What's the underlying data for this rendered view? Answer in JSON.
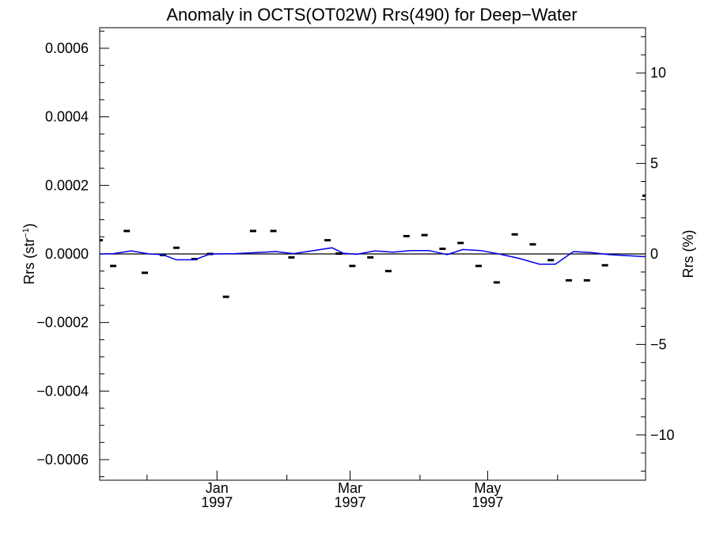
{
  "chart_data": {
    "type": "line",
    "title": "Anomaly in OCTS(OT02W) Rrs(490) for Deep−Water",
    "ylabel_left": "Rrs (str",
    "ylabel_left_sup": "−1",
    "ylabel_left_close": ")",
    "ylabel_right": "Rrs (%)",
    "y_left_lim": [
      -0.00066,
      0.00066
    ],
    "y_right_lim": [
      -12.5,
      12.5
    ],
    "x_domain": [
      "1996-11-10",
      "1997-07-10"
    ],
    "y_left_ticks": [
      {
        "value": 0.0006,
        "label": "0.0006"
      },
      {
        "value": 0.0004,
        "label": "0.0004"
      },
      {
        "value": 0.0002,
        "label": "0.0002"
      },
      {
        "value": 0.0,
        "label": "0.0000"
      },
      {
        "value": -0.0002,
        "label": "−0.0002"
      },
      {
        "value": -0.0004,
        "label": "−0.0004"
      },
      {
        "value": -0.0006,
        "label": "−0.0006"
      }
    ],
    "y_right_ticks": [
      {
        "value": 10,
        "label": "10"
      },
      {
        "value": 5,
        "label": "5"
      },
      {
        "value": 0,
        "label": "0"
      },
      {
        "value": -5,
        "label": "−5"
      },
      {
        "value": -10,
        "label": "−10"
      }
    ],
    "x_ticks": [
      {
        "date": "1997-01-01",
        "month": "Jan",
        "year": "1997"
      },
      {
        "date": "1997-03-01",
        "month": "Mar",
        "year": "1997"
      },
      {
        "date": "1997-05-01",
        "month": "May",
        "year": "1997"
      }
    ],
    "x_minor_ticks": [
      "1996-12-01",
      "1997-02-01",
      "1997-04-01",
      "1997-06-01"
    ],
    "zero_line": true,
    "series": [
      {
        "kind": "markers",
        "color": "#000000",
        "points": [
          {
            "x": "1996-11-10",
            "y": 4e-05
          },
          {
            "x": "1996-11-16",
            "y": -3.5e-05
          },
          {
            "x": "1996-11-22",
            "y": 6.7e-05
          },
          {
            "x": "1996-11-30",
            "y": -5.5e-05
          },
          {
            "x": "1996-12-08",
            "y": -3e-06
          },
          {
            "x": "1996-12-14",
            "y": 1.8e-05
          },
          {
            "x": "1996-12-22",
            "y": -1.5e-05
          },
          {
            "x": "1996-12-29",
            "y": 0.0
          },
          {
            "x": "1997-01-05",
            "y": -0.000125
          },
          {
            "x": "1997-01-17",
            "y": 6.7e-05
          },
          {
            "x": "1997-01-26",
            "y": 6.7e-05
          },
          {
            "x": "1997-02-03",
            "y": -1e-05
          },
          {
            "x": "1997-02-19",
            "y": 4e-05
          },
          {
            "x": "1997-02-24",
            "y": 1e-06
          },
          {
            "x": "1997-03-02",
            "y": -3.5e-05
          },
          {
            "x": "1997-03-10",
            "y": -1e-05
          },
          {
            "x": "1997-03-18",
            "y": -5e-05
          },
          {
            "x": "1997-03-26",
            "y": 5.2e-05
          },
          {
            "x": "1997-04-03",
            "y": 5.5e-05
          },
          {
            "x": "1997-04-11",
            "y": 1.5e-05
          },
          {
            "x": "1997-04-19",
            "y": 3.2e-05
          },
          {
            "x": "1997-04-27",
            "y": -3.5e-05
          },
          {
            "x": "1997-05-05",
            "y": -8.3e-05
          },
          {
            "x": "1997-05-13",
            "y": 5.7e-05
          },
          {
            "x": "1997-05-21",
            "y": 2.8e-05
          },
          {
            "x": "1997-05-29",
            "y": -1.8e-05
          },
          {
            "x": "1997-06-06",
            "y": -7.7e-05
          },
          {
            "x": "1997-06-14",
            "y": -7.7e-05
          },
          {
            "x": "1997-06-22",
            "y": -3.3e-05
          },
          {
            "x": "1997-07-10",
            "y": 0.00017
          }
        ]
      },
      {
        "kind": "line",
        "color": "#0000ee",
        "points": [
          {
            "x": "1996-11-10",
            "y": 0.0
          },
          {
            "x": "1996-11-16",
            "y": 1e-06
          },
          {
            "x": "1996-11-24",
            "y": 9e-06
          },
          {
            "x": "1996-12-02",
            "y": 0.0
          },
          {
            "x": "1996-12-08",
            "y": -2e-06
          },
          {
            "x": "1996-12-14",
            "y": -1.7e-05
          },
          {
            "x": "1996-12-22",
            "y": -1.7e-05
          },
          {
            "x": "1996-12-29",
            "y": 0.0
          },
          {
            "x": "1997-01-09",
            "y": 1e-06
          },
          {
            "x": "1997-01-27",
            "y": 7e-06
          },
          {
            "x": "1997-02-04",
            "y": 1e-06
          },
          {
            "x": "1997-02-12",
            "y": 9e-06
          },
          {
            "x": "1997-02-21",
            "y": 1.8e-05
          },
          {
            "x": "1997-02-26",
            "y": 2e-06
          },
          {
            "x": "1997-03-04",
            "y": -1e-06
          },
          {
            "x": "1997-03-12",
            "y": 9e-06
          },
          {
            "x": "1997-03-20",
            "y": 5e-06
          },
          {
            "x": "1997-03-28",
            "y": 1e-05
          },
          {
            "x": "1997-04-05",
            "y": 1e-05
          },
          {
            "x": "1997-04-13",
            "y": -2e-06
          },
          {
            "x": "1997-04-20",
            "y": 1.3e-05
          },
          {
            "x": "1997-04-28",
            "y": 1e-05
          },
          {
            "x": "1997-05-06",
            "y": 0.0
          },
          {
            "x": "1997-05-15",
            "y": -1.3e-05
          },
          {
            "x": "1997-05-24",
            "y": -3e-05
          },
          {
            "x": "1997-05-31",
            "y": -3e-05
          },
          {
            "x": "1997-06-08",
            "y": 7e-06
          },
          {
            "x": "1997-06-16",
            "y": 4e-06
          },
          {
            "x": "1997-06-24",
            "y": -2e-06
          },
          {
            "x": "1997-07-10",
            "y": -8e-06
          }
        ]
      }
    ]
  }
}
